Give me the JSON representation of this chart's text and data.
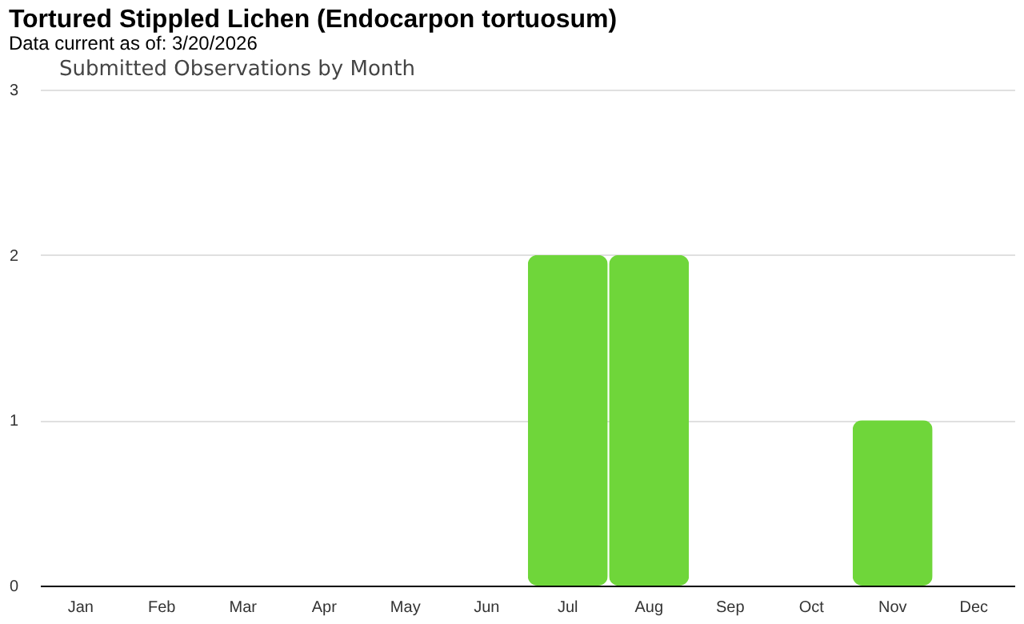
{
  "chart_data": {
    "type": "bar",
    "title": "Tortured Stippled Lichen   (Endocarpon tortuosum)",
    "subtitle": "Data current as of: 3/20/2026",
    "annotations": [
      "Submitted Observations by Month"
    ],
    "categories": [
      "Jan",
      "Feb",
      "Mar",
      "Apr",
      "May",
      "Jun",
      "Jul",
      "Aug",
      "Sep",
      "Oct",
      "Nov",
      "Dec"
    ],
    "values": [
      0,
      0,
      0,
      0,
      0,
      0,
      2,
      2,
      0,
      0,
      1,
      0
    ],
    "color": "#6fd63a",
    "ylim": [
      0,
      3
    ],
    "yticks": [
      0,
      1,
      2,
      3
    ],
    "grid": "y"
  }
}
